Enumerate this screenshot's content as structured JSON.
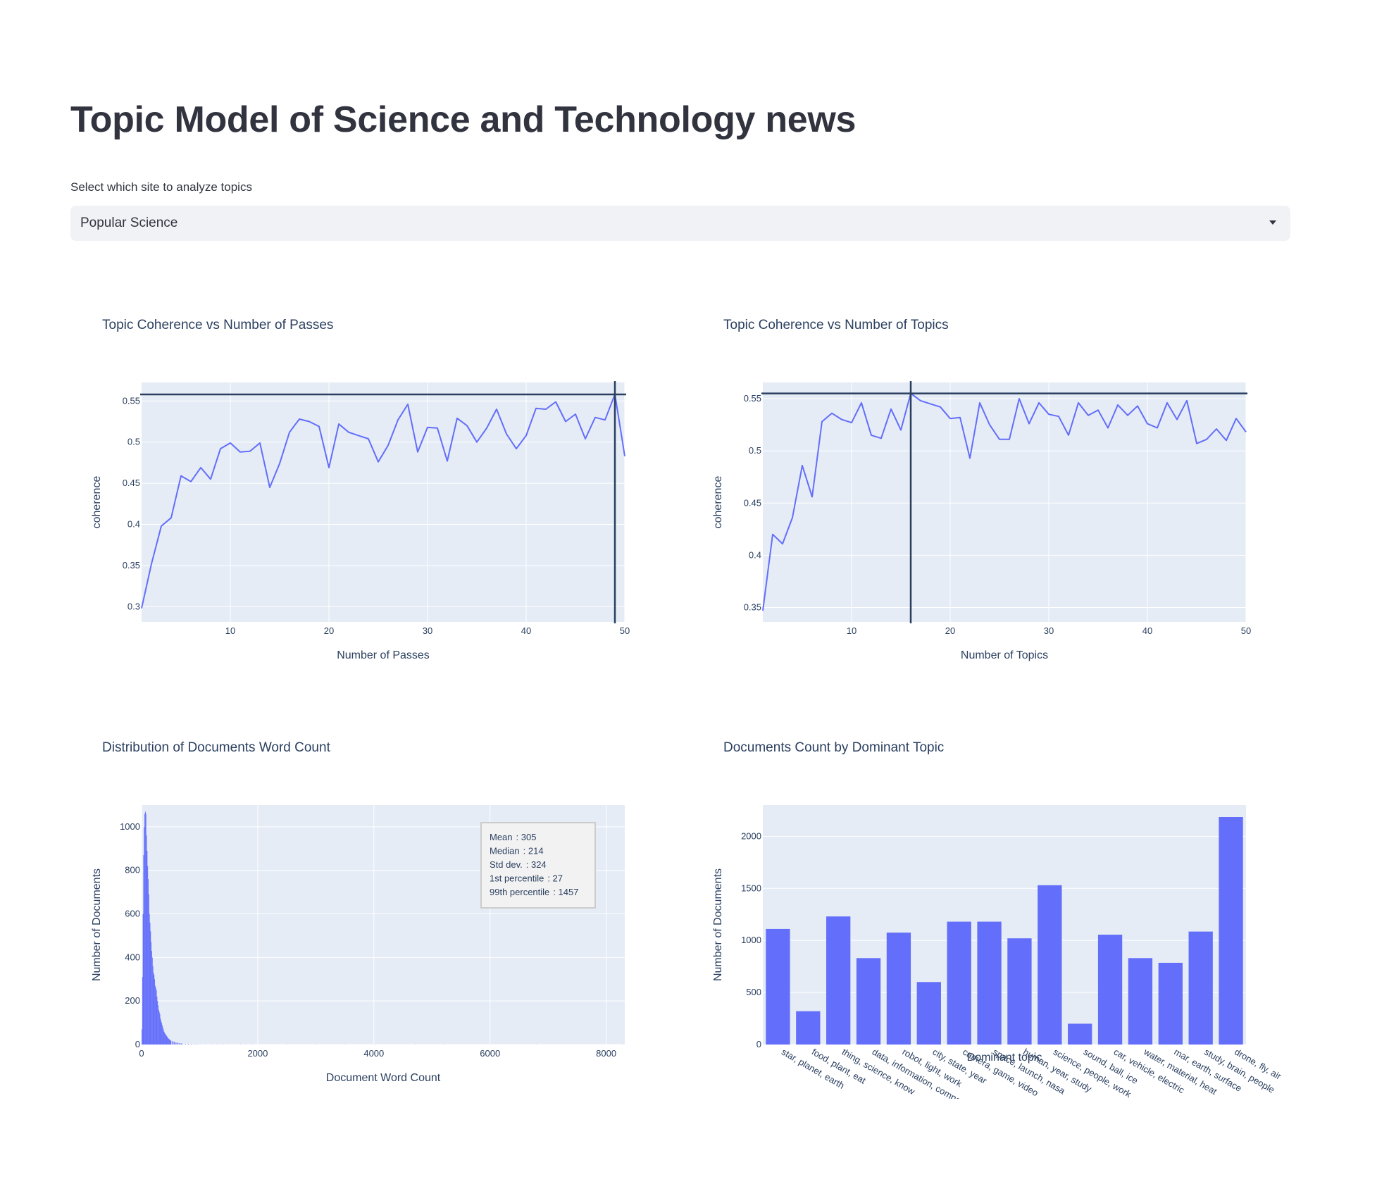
{
  "page": {
    "title": "Topic Model of Science and Technology news"
  },
  "site_select": {
    "label": "Select which site to analyze topics",
    "value": "Popular Science",
    "icon": "chevron-down-icon"
  },
  "colors": {
    "plot_bg": "#e5ecf6",
    "series": "#636efa",
    "reference_line": "#2a3f5f",
    "text": "#31333f"
  },
  "chart_data": [
    {
      "id": "passes",
      "type": "line",
      "title": "Topic Coherence vs Number of Passes",
      "xlabel": "Number of Passes",
      "ylabel": "coherence",
      "xlim": [
        1,
        50
      ],
      "ylim": [
        0.2815,
        0.5725
      ],
      "xticks": [
        10,
        20,
        30,
        40,
        50
      ],
      "yticks": [
        0.3,
        0.35,
        0.4,
        0.45,
        0.5,
        0.55
      ],
      "ytick_labels": [
        "0.3",
        "0.35",
        "0.4",
        "0.45",
        "0.5",
        "0.55"
      ],
      "reference_lines": {
        "x": 49,
        "y": 0.558
      },
      "x": [
        1,
        2,
        3,
        4,
        5,
        6,
        7,
        8,
        9,
        10,
        11,
        12,
        13,
        14,
        15,
        16,
        17,
        18,
        19,
        20,
        21,
        22,
        23,
        24,
        25,
        26,
        27,
        28,
        29,
        30,
        31,
        32,
        33,
        34,
        35,
        36,
        37,
        38,
        39,
        40,
        41,
        42,
        43,
        44,
        45,
        46,
        47,
        48,
        49,
        50
      ],
      "y": [
        0.298,
        0.352,
        0.398,
        0.408,
        0.459,
        0.452,
        0.469,
        0.455,
        0.492,
        0.499,
        0.488,
        0.489,
        0.499,
        0.445,
        0.474,
        0.512,
        0.528,
        0.525,
        0.519,
        0.469,
        0.522,
        0.512,
        0.508,
        0.504,
        0.476,
        0.496,
        0.527,
        0.546,
        0.488,
        0.518,
        0.517,
        0.477,
        0.529,
        0.52,
        0.5,
        0.517,
        0.54,
        0.51,
        0.492,
        0.508,
        0.541,
        0.54,
        0.549,
        0.525,
        0.534,
        0.504,
        0.53,
        0.527,
        0.558,
        0.483
      ]
    },
    {
      "id": "topics",
      "type": "line",
      "title": "Topic Coherence vs Number of Topics",
      "xlabel": "Number of Topics",
      "ylabel": "coherence",
      "xlim": [
        1,
        50
      ],
      "ylim": [
        0.3362,
        0.5655
      ],
      "xticks": [
        10,
        20,
        30,
        40,
        50
      ],
      "yticks": [
        0.35,
        0.4,
        0.45,
        0.5,
        0.55
      ],
      "ytick_labels": [
        "0.35",
        "0.4",
        "0.45",
        "0.5",
        "0.55"
      ],
      "reference_lines": {
        "x": 16,
        "y": 0.555
      },
      "x": [
        1,
        2,
        3,
        4,
        5,
        6,
        7,
        8,
        9,
        10,
        11,
        12,
        13,
        14,
        15,
        16,
        17,
        18,
        19,
        20,
        21,
        22,
        23,
        24,
        25,
        26,
        27,
        28,
        29,
        30,
        31,
        32,
        33,
        34,
        35,
        36,
        37,
        38,
        39,
        40,
        41,
        42,
        43,
        44,
        45,
        46,
        47,
        48,
        49,
        50
      ],
      "y": [
        0.347,
        0.42,
        0.411,
        0.436,
        0.486,
        0.456,
        0.528,
        0.536,
        0.53,
        0.527,
        0.546,
        0.515,
        0.512,
        0.54,
        0.52,
        0.555,
        0.548,
        0.545,
        0.542,
        0.531,
        0.532,
        0.493,
        0.546,
        0.525,
        0.511,
        0.511,
        0.55,
        0.526,
        0.546,
        0.535,
        0.533,
        0.515,
        0.546,
        0.534,
        0.539,
        0.522,
        0.544,
        0.534,
        0.543,
        0.526,
        0.522,
        0.546,
        0.53,
        0.548,
        0.507,
        0.511,
        0.521,
        0.51,
        0.531,
        0.518
      ]
    },
    {
      "id": "wordcount",
      "type": "bar",
      "title": "Distribution of Documents Word Count",
      "xlabel": "Document Word Count",
      "ylabel": "Number of Documents",
      "xlim": [
        0,
        8320
      ],
      "ylim": [
        0,
        1100
      ],
      "xticks": [
        0,
        2000,
        4000,
        6000,
        8000
      ],
      "yticks": [
        0,
        200,
        400,
        600,
        800,
        1000
      ],
      "bin_width": 10,
      "bin_starts": [
        0,
        10,
        20,
        30,
        40,
        50,
        60,
        70,
        80,
        90,
        100,
        110,
        120,
        130,
        140,
        150,
        160,
        170,
        180,
        190,
        200,
        210,
        220,
        230,
        240,
        250,
        260,
        270,
        280,
        290,
        300,
        310,
        320,
        330,
        340,
        350,
        360,
        370,
        380,
        390,
        400,
        410,
        420,
        430,
        440,
        450,
        460,
        470,
        480,
        490,
        500,
        520,
        540,
        560,
        580,
        600,
        620,
        640,
        660,
        680,
        700,
        750,
        800,
        850,
        900,
        950,
        1000,
        1100,
        1200,
        1300,
        1400,
        1500,
        1600,
        1700,
        1800,
        1900,
        2000,
        2500,
        3000,
        3500,
        4000,
        4700,
        5200,
        6000,
        6800,
        8300
      ],
      "counts": [
        70,
        310,
        600,
        870,
        1000,
        1060,
        1070,
        1060,
        960,
        890,
        820,
        760,
        690,
        600,
        560,
        520,
        470,
        430,
        400,
        360,
        330,
        320,
        300,
        270,
        260,
        250,
        220,
        200,
        180,
        160,
        150,
        140,
        120,
        110,
        100,
        90,
        80,
        70,
        60,
        55,
        50,
        46,
        42,
        38,
        34,
        30,
        27,
        25,
        22,
        20,
        18,
        16,
        14,
        12,
        10,
        9,
        8,
        7,
        6,
        5,
        4,
        3,
        3,
        2,
        2,
        2,
        1,
        1,
        1,
        1,
        1,
        1,
        1,
        1,
        1,
        1,
        1,
        1,
        1,
        1,
        1,
        1,
        1,
        1,
        1,
        1
      ],
      "annotation": [
        {
          "label": "Mean",
          "value": ": 305"
        },
        {
          "label": "Median",
          "value": ": 214"
        },
        {
          "label": "Std dev.",
          "value": ": 324"
        },
        {
          "label": "1st percentile",
          "value": ": 27"
        },
        {
          "label": "99th percentile",
          "value": ": 1457"
        }
      ]
    },
    {
      "id": "dominant",
      "type": "bar",
      "title": "Documents Count by Dominant Topic",
      "xlabel": "Dominant topic",
      "ylabel": "Number of Documents",
      "ylim": [
        0,
        2300
      ],
      "yticks": [
        0,
        500,
        1000,
        1500,
        2000
      ],
      "categories": [
        "star, planet, earth",
        "food, plant, eat",
        "thing, science, know",
        "data, information, company",
        "robot, light, work",
        "city, state, year",
        "camera, game, video",
        "space, launch, nasa",
        "human, year, study",
        "science, people, work",
        "sound, ball, ice",
        "car, vehicle, electric",
        "water, material, heat",
        "mar, earth, surface",
        "study, brain, people",
        "drone, fly, air"
      ],
      "values": [
        1110,
        320,
        1230,
        830,
        1075,
        600,
        1180,
        1180,
        1020,
        1530,
        200,
        1055,
        830,
        785,
        1085,
        2185
      ]
    }
  ]
}
